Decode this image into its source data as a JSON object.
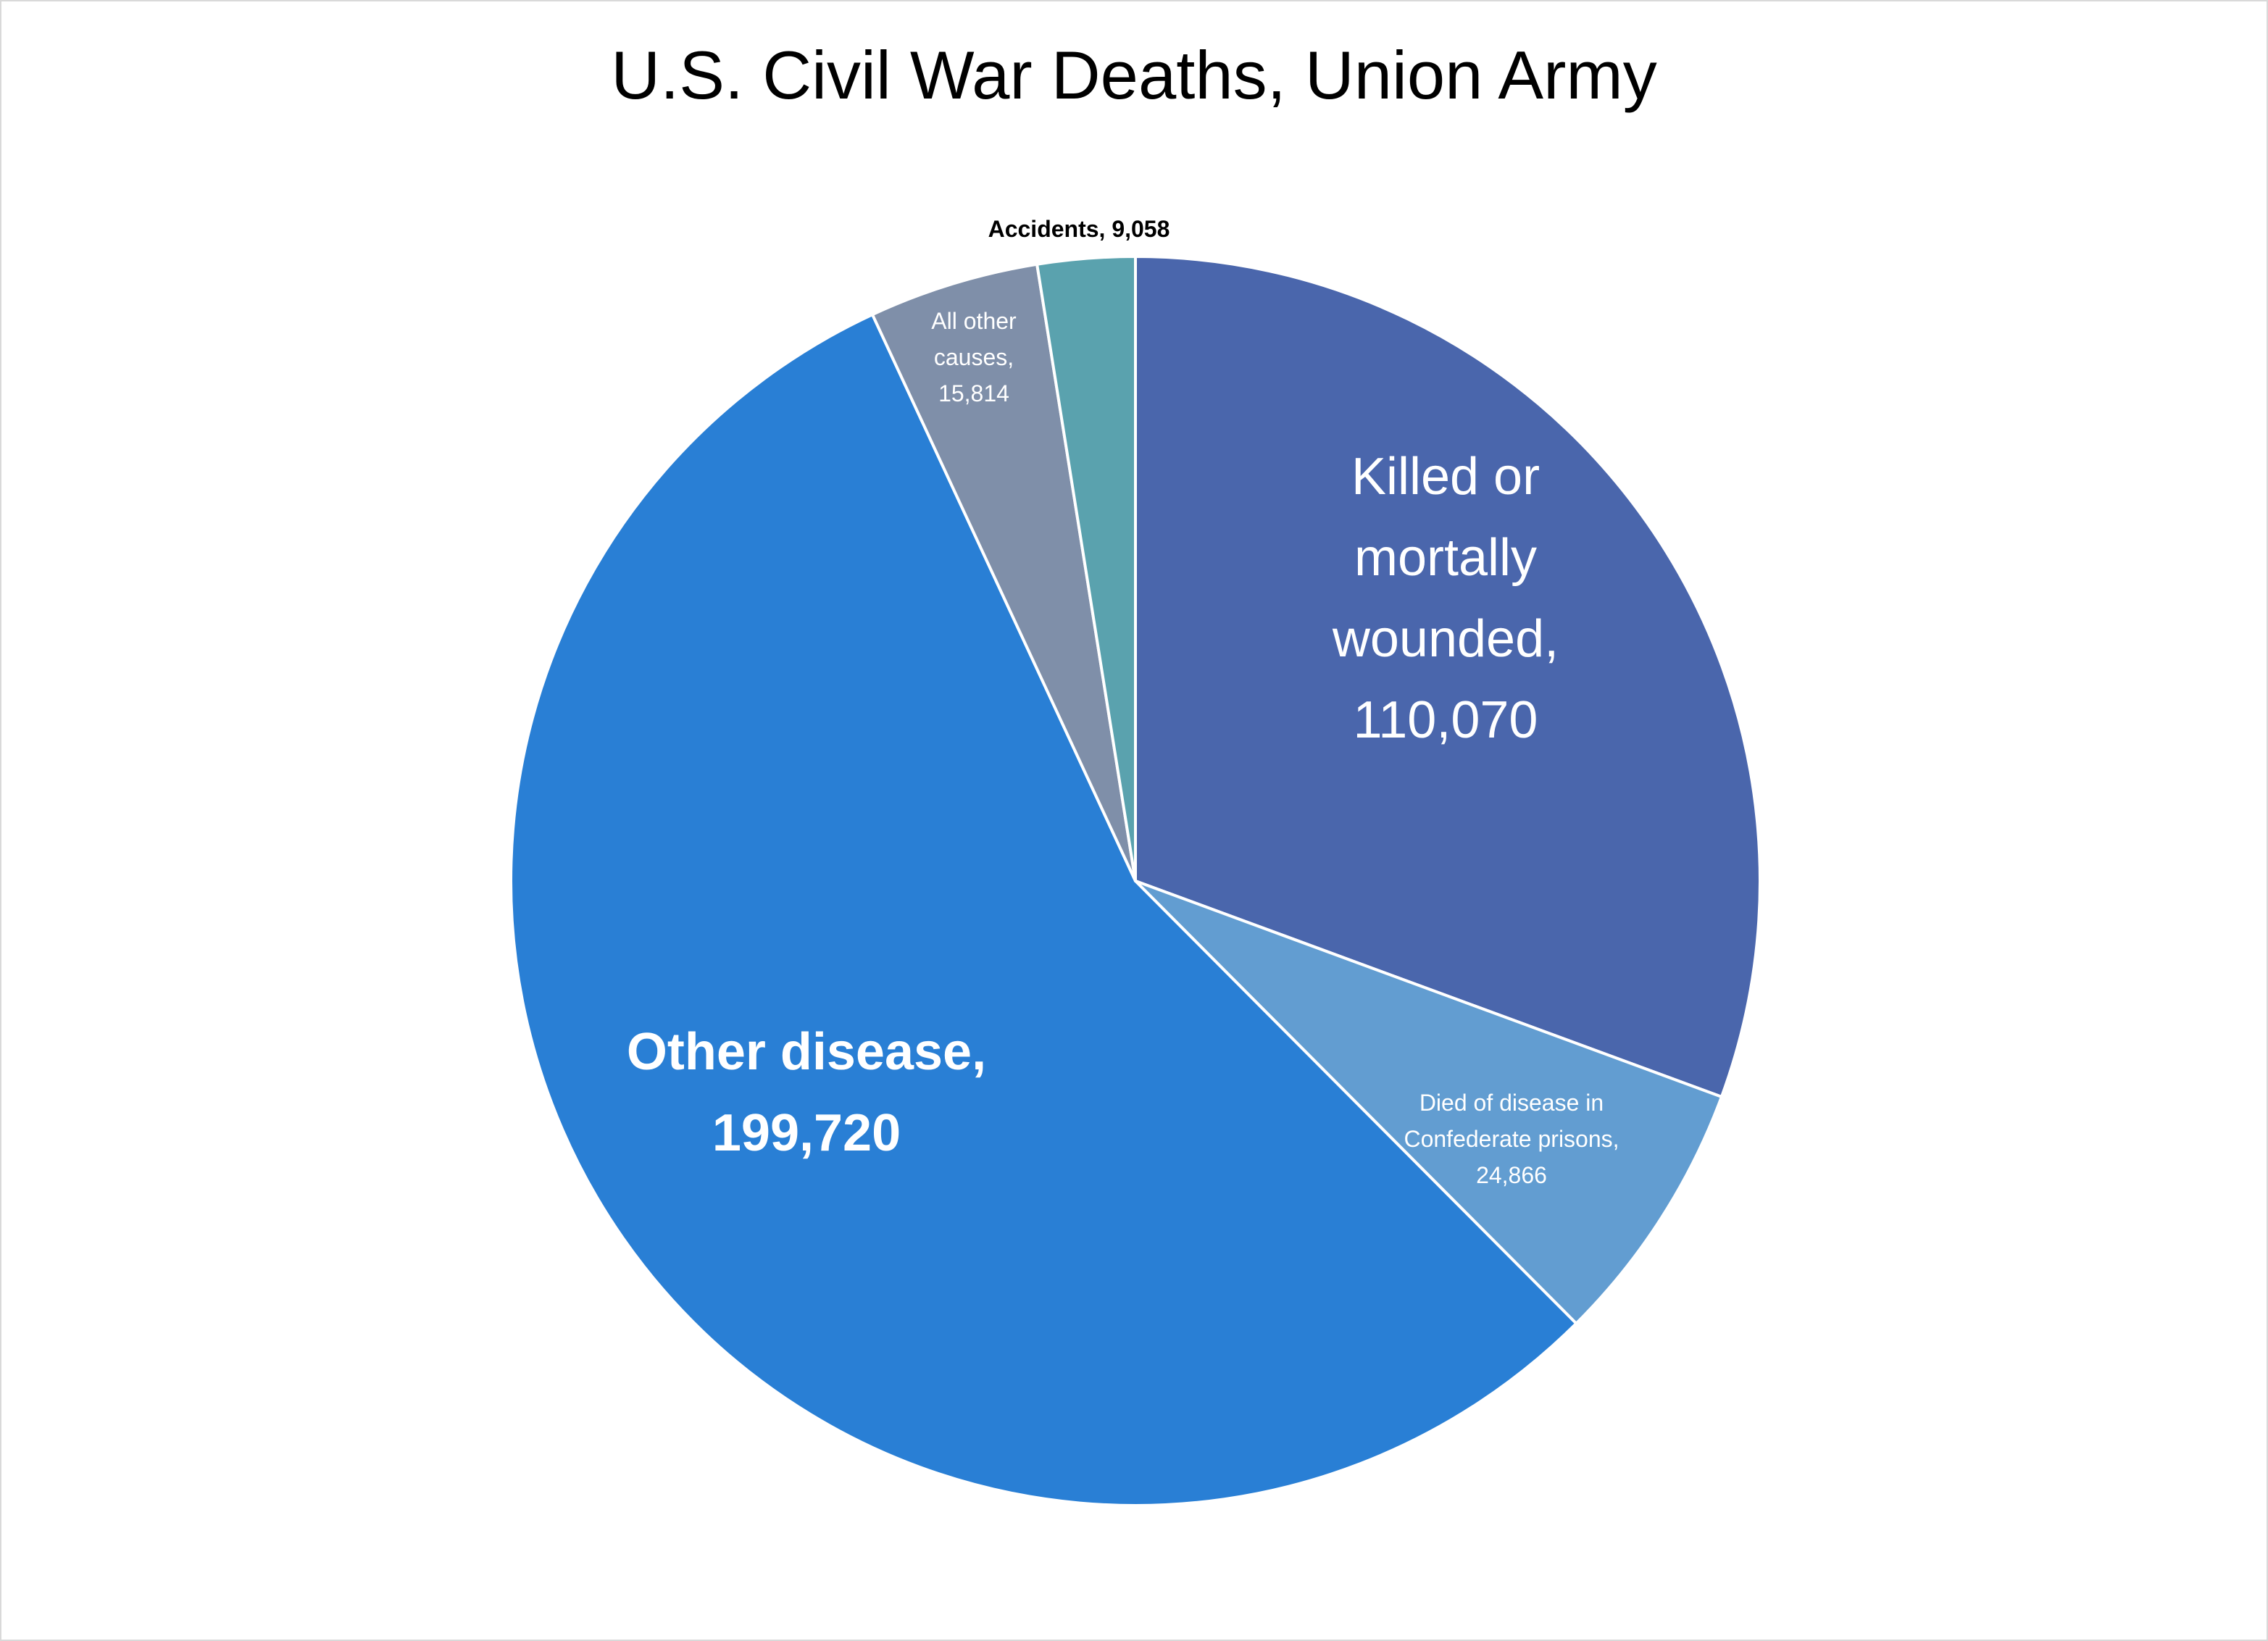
{
  "chart_data": {
    "type": "pie",
    "title": "U.S. Civil War Deaths, Union Army",
    "start_angle_deg": 0,
    "direction": "clockwise",
    "legend": "none",
    "slice_border_color": "#ffffff",
    "slices": [
      {
        "name": "Killed or mortally wounded",
        "value": 110070,
        "color": "#4a66ac",
        "label_lines": [
          "Killed or",
          "mortally",
          "wounded,",
          "110,070"
        ],
        "label_color": "#ffffff"
      },
      {
        "name": "Died of disease in Confederate prisons",
        "value": 24866,
        "color": "#629dd1",
        "label_lines": [
          "Died of disease in",
          "Confederate prisons,",
          "24,866"
        ],
        "label_color": "#ffffff"
      },
      {
        "name": "Other disease",
        "value": 199720,
        "color": "#297fd5",
        "label_lines": [
          "Other disease,",
          "199,720"
        ],
        "label_color": "#ffffff"
      },
      {
        "name": "All other causes",
        "value": 15814,
        "color": "#7f8fa9",
        "label_lines": [
          "All other",
          "causes,",
          "15,814"
        ],
        "label_color": "#ffffff"
      },
      {
        "name": "Accidents",
        "value": 9058,
        "color": "#5aa2ae",
        "label_lines": [
          "Accidents, 9,058"
        ],
        "label_color": "#000000"
      }
    ]
  }
}
